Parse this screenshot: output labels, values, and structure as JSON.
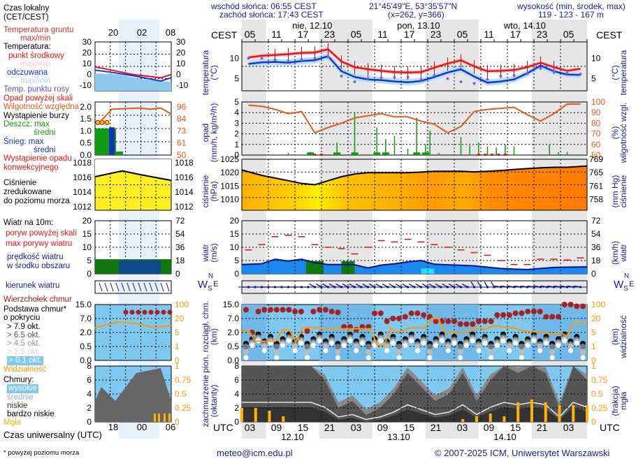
{
  "header": {
    "sunrise": "wschód słońca: 06:55 CEST",
    "sunset": "zachód słońca: 17:43 CEST",
    "coords": "21°45'49\"E, 53°35'57\"N",
    "grid": "(x=262, y=366)",
    "elevation_label": "wysokość (min, środek, max)",
    "elevation_value": "119 - 123 - 167 m",
    "tz_local": "CEST",
    "tz_utc": "UTC",
    "days_local": [
      "nie, 12.10",
      "pon, 13.10",
      "wto, 14.10"
    ],
    "hours_local": [
      "05",
      "11",
      "17",
      "23",
      "05",
      "11",
      "17",
      "23",
      "05",
      "11",
      "17",
      "23",
      "05"
    ],
    "hours_utc": [
      "03",
      "09",
      "15",
      "21",
      "03",
      "09",
      "15",
      "21",
      "03",
      "09",
      "15",
      "21",
      "03"
    ],
    "days_utc": [
      "12.10",
      "13.10",
      "14.10"
    ]
  },
  "footer": {
    "email": "meteo@icm.edu.pl",
    "copyright": "© 2007-2025 ICM, Uniwersytet Warszawski",
    "note": "* powyżej poziomu morza"
  },
  "legend": {
    "local_time": "Czas lokalny",
    "local_time_tz": "(CET/CEST)",
    "legend_hours_local": [
      "20",
      "02",
      "08"
    ],
    "legend_hours_utc": [
      "18",
      "00",
      "06"
    ],
    "utc_time": "Czas uniwersalny (UTC)",
    "ground_temp": "Temperatura gruntu",
    "ground_temp_sub": "max/min",
    "temperature": "Temperatura:",
    "center_point": "punkt środkowy",
    "maxmin1": "max/min",
    "apparent": "odczuwana",
    "maxmin2": "max/min",
    "dew_point": "Temp. punktu rosy",
    "precip_over": "Opad powyżej skali",
    "humidity": "Wilgotność względna",
    "storm": "Wystąpienie burzy",
    "rain_max": "Deszcz: max",
    "rain_avg": "średni",
    "snow_max": "Śnieg:   max",
    "snow_avg": "średni",
    "convective": "Wystąpienie opadu",
    "convective2": "konwekcyjnego",
    "pressure1": "Ciśnienie",
    "pressure2": "zredukowane",
    "pressure3": "do poziomu morza",
    "wind_title": "Wiatr na 10m:",
    "gust_over": "poryw powyżej skali",
    "gust_max": "max porywy wiatru",
    "wind_speed1": "prędkość wiatru",
    "wind_speed2": "w środku obszaru",
    "wind_dir": "kierunek wiatru",
    "cloud_top": "Wierzchołek chmur",
    "cloud_base1": "Podstawa chmur*",
    "cloud_base2": "o pokryciu",
    "okt": [
      "> 7.9 okt.",
      "> 6.5 okt.",
      "> 4.5 okt.",
      "> 2.5 okt.",
      "> 0.1 okt."
    ],
    "visibility": "Widzialność",
    "clouds": "Chmury:",
    "high": "wysokie",
    "mid": "średnie",
    "low": "niskie",
    "very_low": "bardzo niskie",
    "fog": "Mgła",
    "temp_ticks": [
      "30",
      "20",
      "10",
      "0",
      "-10"
    ],
    "precip_ticks": [
      "2.0",
      "1.5",
      "1.0",
      "0.5",
      "0.0"
    ],
    "hum_ticks": [
      "96",
      "84",
      "73",
      "61",
      "50"
    ],
    "press_ticks": [
      "1018",
      "1016",
      "1014",
      "1012"
    ],
    "wind_ticks": [
      "20",
      "15",
      "10",
      "5",
      "0"
    ],
    "wind_kmh_ticks": [
      "72",
      "54",
      "36",
      "18",
      "0"
    ],
    "cloud_ticks": [
      "15.0",
      "7.0",
      "2.0",
      "0.5",
      "0.0"
    ],
    "vis_ticks": [
      "100",
      "20",
      "5",
      "1",
      "0"
    ],
    "okta_ticks": [
      "8",
      "6",
      "4",
      "2",
      "0"
    ],
    "fog_ticks": [
      "1",
      "0.75",
      "0.5",
      "0.25",
      "0"
    ]
  },
  "panels": {
    "temp": {
      "label": "temperatura",
      "unit": "(°C)",
      "ticks": [
        "10",
        "5"
      ]
    },
    "precip": {
      "label": "opad",
      "unit": "(mm/h, kg/m²/h)",
      "ticks": [
        "5",
        "4",
        "3",
        "2",
        "1",
        "0"
      ],
      "right_label": "wilgotność wzgl.",
      "right_unit": "(%)",
      "right_ticks": [
        "100",
        "90",
        "80",
        "70",
        "60",
        "50"
      ]
    },
    "pressure": {
      "label": "ciśnienie",
      "unit": "(hPa)",
      "ticks": [
        "1025",
        "1020",
        "1015",
        "1010"
      ],
      "right_label": "ciśnienie",
      "right_unit": "(mm Hg)",
      "right_ticks": [
        "769",
        "765",
        "761",
        "758"
      ]
    },
    "wind": {
      "label": "wiatr",
      "unit": "(m/s)",
      "ticks": [
        "20",
        "15",
        "10",
        "5",
        "0"
      ],
      "right_label": "wiatr",
      "right_unit": "(km/h)",
      "right_ticks": [
        "72",
        "54",
        "36",
        "18",
        "0"
      ]
    },
    "winddir": {
      "compass": [
        "N",
        "W",
        "E",
        "S"
      ]
    },
    "cloudbase": {
      "label": "pion. rozciągł. chm.",
      "unit": "(km)",
      "ticks": [
        "15.0",
        "7.0",
        "2.0",
        "0.5",
        "0.0"
      ],
      "right_label": "widzialność",
      "right_unit": "(km)",
      "right_ticks": [
        "100",
        "20",
        "5",
        "1",
        "0"
      ]
    },
    "cloudcover": {
      "label": "zachmurzenie",
      "unit": "(oktanty)",
      "ticks": [
        "8",
        "6",
        "4",
        "2",
        "0"
      ],
      "right_label": "mgła",
      "right_unit": "(frakcja)",
      "right_ticks": [
        "1",
        "0.75",
        "0.5",
        "0.25",
        "0"
      ]
    }
  },
  "colors": {
    "temp_line": "#ee1111",
    "apparent_line": "#1133dd",
    "dew": "#7766cc",
    "humidity": "#e05a1a",
    "rain": "#119911",
    "pressure_fill": "#f5a500",
    "wind_fill": "#1a88ee",
    "cloud_sky": "#7fc8f0",
    "visibility": "#ff9900",
    "fog": "#ffb300",
    "axis_label": "#1a1a8c",
    "night_band": "#e6e6e6"
  },
  "chart_data": [
    {
      "type": "line",
      "title": "temperatura (°C)",
      "x_hours_utc_from_start": [
        0,
        3,
        6,
        9,
        12,
        15,
        18,
        21,
        24,
        27,
        30,
        33,
        36,
        39,
        42,
        45,
        48,
        51,
        54,
        57,
        60,
        63,
        66,
        69,
        72,
        75
      ],
      "ylim": [
        2,
        14
      ],
      "series": [
        {
          "name": "punkt środkowy",
          "values": [
            10.2,
            10.6,
            10.8,
            11.0,
            11.3,
            11.4,
            12.2,
            9.2,
            7.8,
            7.3,
            6.9,
            6.6,
            6.5,
            6.6,
            7.7,
            8.7,
            9.5,
            8.0,
            6.8,
            6.9,
            7.1,
            7.8,
            8.9,
            7.8,
            6.9,
            7.4
          ]
        },
        {
          "name": "odczuwana",
          "values": [
            8.6,
            9.0,
            9.1,
            8.9,
            9.3,
            9.5,
            10.5,
            6.8,
            5.4,
            4.8,
            4.6,
            4.3,
            4.1,
            4.4,
            5.4,
            6.5,
            7.3,
            5.5,
            4.0,
            4.3,
            4.8,
            6.3,
            8.2,
            6.8,
            6.0,
            5.9
          ]
        },
        {
          "name": "Temp. punktu rosy",
          "values": [
            10.0,
            10.0,
            9.6,
            9.3,
            9.6,
            10.0,
            10.3,
            5.6,
            4.2,
            5.0,
            5.2,
            5.3,
            5.3,
            4.7,
            5.8,
            5.0,
            4.2,
            3.8,
            4.8,
            5.6,
            5.8,
            6.2,
            7.5,
            6.7,
            6.3,
            6.1
          ]
        }
      ]
    },
    {
      "type": "line",
      "title": "wilgotność wzgl. (%)",
      "x_hours_utc_from_start": [
        0,
        3,
        6,
        9,
        12,
        15,
        18,
        21,
        24,
        27,
        30,
        33,
        36,
        39,
        42,
        45,
        48,
        51,
        54,
        57,
        60,
        63,
        66,
        69,
        72,
        75
      ],
      "ylim": [
        50,
        100
      ],
      "series": [
        {
          "name": "wilgotność względna",
          "values": [
            97,
            96,
            93,
            89,
            91,
            71,
            76,
            80,
            85,
            87,
            89,
            86,
            86,
            82,
            79,
            71,
            77,
            91,
            93,
            94,
            95,
            88,
            82,
            89,
            98,
            98
          ]
        }
      ]
    },
    {
      "type": "bar",
      "title": "opad (mm/h)",
      "x_hours_utc_from_start": [
        9,
        14,
        20,
        24,
        29,
        31,
        33,
        36,
        38,
        40,
        41,
        43,
        48,
        50,
        52,
        54,
        56,
        58,
        60,
        68,
        70,
        72
      ],
      "ylim": [
        0,
        5
      ],
      "series": [
        {
          "name": "Deszcz max",
          "values": [
            0.2,
            0.3,
            1.2,
            4.0,
            2.6,
            1.5,
            1.8,
            0.6,
            3.5,
            1.0,
            2.3,
            0.2,
            1.7,
            0.9,
            1.2,
            0.8,
            0.7,
            1.0,
            0.8,
            1.0,
            0.3,
            0.3
          ]
        }
      ]
    },
    {
      "type": "area",
      "title": "ciśnienie (hPa)",
      "x_hours_utc_from_start": [
        0,
        3,
        6,
        9,
        12,
        15,
        18,
        21,
        24,
        27,
        30,
        33,
        36,
        39,
        42,
        45,
        48,
        51,
        54,
        57,
        60,
        63,
        66,
        69,
        72,
        75
      ],
      "ylim": [
        1006,
        1025
      ],
      "series": [
        {
          "name": "ciśnienie",
          "values": [
            1021,
            1019,
            1018,
            1017,
            1016,
            1015.5,
            1017,
            1018.5,
            1019.5,
            1020,
            1020,
            1020,
            1020,
            1020.2,
            1020.5,
            1020.5,
            1020.5,
            1020.3,
            1020.5,
            1020.8,
            1021.2,
            1021.5,
            1021.8,
            1022,
            1022,
            1022.5
          ]
        }
      ]
    },
    {
      "type": "area",
      "title": "wiatr (m/s)",
      "x_hours_utc_from_start": [
        0,
        3,
        6,
        9,
        12,
        15,
        18,
        21,
        24,
        27,
        30,
        33,
        36,
        39,
        42,
        45,
        48,
        51,
        54,
        57,
        60,
        63,
        66,
        69,
        72,
        75
      ],
      "ylim": [
        0,
        20
      ],
      "series": [
        {
          "name": "prędkość wiatru",
          "values": [
            3.5,
            3.8,
            5.5,
            4.8,
            5.5,
            4.2,
            3.5,
            3.5,
            3.4,
            2.2,
            3.3,
            3.8,
            4.5,
            5.0,
            3.6,
            3.4,
            3.2,
            3.0,
            2.5,
            2.0,
            1.8,
            1.6,
            2.0,
            2.4,
            2.5,
            2.6
          ]
        },
        {
          "name": "max porywy wiatru",
          "values": [
            9,
            11,
            14,
            14.5,
            14,
            11,
            10,
            9.5,
            7.5,
            10,
            12.5,
            12,
            13,
            12,
            11,
            10,
            9,
            8,
            7,
            5,
            3.5,
            3.5,
            5.5,
            5.5,
            5.2,
            6
          ]
        }
      ]
    },
    {
      "type": "scatter",
      "title": "pion. rozciągł. chm. (km) / widzialność (km)",
      "ylim": [
        0,
        15
      ],
      "series": [
        {
          "name": "Wierzchołek chmur",
          "values": [
            12,
            2,
            11,
            12,
            12,
            12,
            12,
            12,
            11,
            11,
            2.5,
            11,
            12,
            12,
            11,
            10.5,
            4,
            4,
            3,
            4,
            4,
            10,
            10,
            6,
            7,
            7,
            8,
            10,
            10,
            9,
            8,
            6,
            6,
            6,
            6,
            5,
            5,
            5,
            6,
            6,
            6,
            9,
            9,
            9,
            10,
            10,
            11,
            11,
            11,
            8,
            8,
            8,
            15,
            15,
            14,
            14
          ]
        },
        {
          "name": "Widzialność",
          "values": [
            7,
            7,
            2.5,
            2.5,
            2.5,
            2.5,
            8,
            8,
            2.3,
            10,
            10,
            10,
            9,
            9,
            9,
            9,
            9,
            9,
            9,
            9,
            1.3,
            1.3,
            10,
            5,
            8,
            10,
            10,
            10,
            20,
            20,
            5,
            5,
            5,
            5,
            8,
            10,
            8,
            12,
            12,
            10,
            10,
            8,
            6,
            6,
            5,
            5,
            4.5,
            5,
            4,
            15,
            15,
            15
          ]
        }
      ]
    },
    {
      "type": "area",
      "title": "zachmurzenie (oktanty) / mgła (frakcja)",
      "ylim": [
        0,
        8
      ],
      "series": [
        {
          "name": "wysokie",
          "values": [
            8,
            8,
            8,
            8,
            8,
            8,
            8,
            3,
            3,
            2,
            2,
            1,
            8,
            8,
            8,
            8,
            8,
            8,
            8,
            8,
            8,
            8,
            8,
            8,
            8,
            8
          ]
        },
        {
          "name": "niskie",
          "values": [
            8,
            8,
            8,
            8,
            8,
            8,
            6,
            2,
            3,
            1,
            2,
            4,
            7,
            5,
            3,
            4,
            7,
            3,
            6,
            8,
            7,
            8,
            7,
            2,
            8,
            6
          ]
        },
        {
          "name": "Mgła",
          "values": [
            0.25,
            0.25,
            0.2,
            0.1,
            0,
            0,
            0,
            0,
            0,
            0,
            0,
            0,
            0,
            0,
            0,
            0,
            0.05,
            0.1,
            0.15,
            0.1,
            0.35,
            0.4,
            0.35,
            0.3,
            0.3,
            0.3
          ]
        }
      ]
    }
  ]
}
